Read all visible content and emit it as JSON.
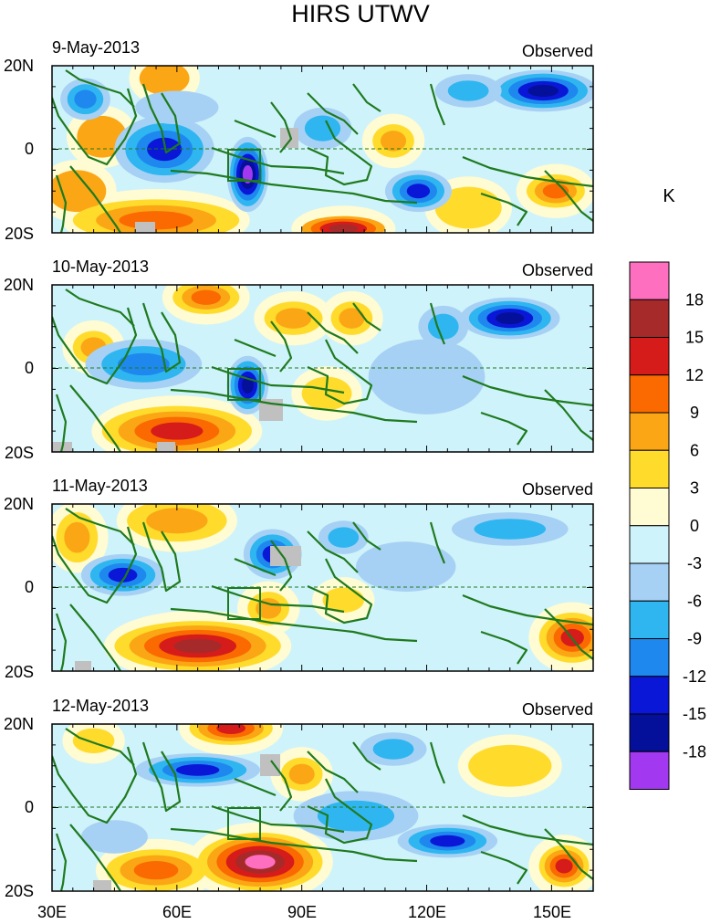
{
  "chart_data": {
    "type": "heatmap",
    "title": "HIRS UTWV",
    "unit": "K",
    "variable_label": "Observed",
    "x_ticks": [
      "30E",
      "60E",
      "90E",
      "120E",
      "150E"
    ],
    "x_tick_values": [
      30,
      60,
      90,
      120,
      150
    ],
    "x_range": [
      30,
      160
    ],
    "y_ticks": [
      "20N",
      "0",
      "20S"
    ],
    "y_tick_values": [
      20,
      0,
      -20
    ],
    "y_range": [
      -20,
      20
    ],
    "colorbar": {
      "labels": [
        "18",
        "15",
        "12",
        "9",
        "6",
        "3",
        "0",
        "-3",
        "-6",
        "-9",
        "-12",
        "-15",
        "-18"
      ],
      "levels": [
        18,
        15,
        12,
        9,
        6,
        3,
        0,
        -3,
        -6,
        -9,
        -12,
        -15,
        -18
      ],
      "colors": [
        "#ff6fc0",
        "#a62a2a",
        "#d61b1b",
        "#fa6a00",
        "#fba615",
        "#ffdb2c",
        "#fffbd2",
        "#cff3fb",
        "#a7d1f4",
        "#2fb6f0",
        "#1e88ef",
        "#0a17d7",
        "#05109a",
        "#a239f1"
      ]
    },
    "panels": [
      {
        "date": "9-May-2013",
        "label": "Observed",
        "features": [
          {
            "lon": 57,
            "lat": 17,
            "rx": 6,
            "ry": 4,
            "levels": [
              6
            ]
          },
          {
            "lon": 42,
            "lat": 3,
            "rx": 6,
            "ry": 5,
            "levels": [
              6
            ]
          },
          {
            "lon": 36,
            "lat": -10,
            "rx": 7,
            "ry": 5,
            "levels": [
              6
            ]
          },
          {
            "lon": 55,
            "lat": -17,
            "rx": 20,
            "ry": 5,
            "levels": [
              3,
              6,
              9
            ]
          },
          {
            "lon": 100,
            "lat": -19,
            "rx": 10,
            "ry": 3,
            "levels": [
              6,
              9,
              12,
              15
            ]
          },
          {
            "lon": 112,
            "lat": 2,
            "rx": 5,
            "ry": 4,
            "levels": [
              3,
              6
            ]
          },
          {
            "lon": 151,
            "lat": -10,
            "rx": 7,
            "ry": 4,
            "levels": [
              3,
              6,
              9
            ]
          },
          {
            "lon": 130,
            "lat": -14,
            "rx": 8,
            "ry": 5,
            "levels": [
              3
            ]
          },
          {
            "lon": 148,
            "lat": 14,
            "rx": 13,
            "ry": 5,
            "levels": [
              -3,
              -6,
              -9,
              -12,
              -15
            ]
          },
          {
            "lon": 77,
            "lat": -6,
            "rx": 5,
            "ry": 9,
            "levels": [
              -3,
              -6,
              -9,
              -12,
              -15,
              -18
            ]
          },
          {
            "lon": 57,
            "lat": 0,
            "rx": 12,
            "ry": 8,
            "levels": [
              -3,
              -6,
              -9,
              -12
            ]
          },
          {
            "lon": 118,
            "lat": -10,
            "rx": 8,
            "ry": 5,
            "levels": [
              -3,
              -6,
              -9,
              -12
            ]
          },
          {
            "lon": 38,
            "lat": 12,
            "rx": 6,
            "ry": 5,
            "levels": [
              -3,
              -6,
              -9
            ]
          },
          {
            "lon": 130,
            "lat": 14,
            "rx": 8,
            "ry": 4,
            "levels": [
              -3,
              -6
            ]
          },
          {
            "lon": 95,
            "lat": 5,
            "rx": 7,
            "ry": 5,
            "levels": [
              -3,
              -6
            ]
          },
          {
            "lon": 60,
            "lat": 10,
            "rx": 10,
            "ry": 4,
            "levels": [
              -3
            ]
          }
        ]
      },
      {
        "date": "10-May-2013",
        "label": "Observed",
        "features": [
          {
            "lon": 60,
            "lat": -15,
            "rx": 18,
            "ry": 6,
            "levels": [
              3,
              6,
              9,
              12
            ]
          },
          {
            "lon": 67,
            "lat": 17,
            "rx": 8,
            "ry": 4,
            "levels": [
              3,
              6,
              9
            ]
          },
          {
            "lon": 40,
            "lat": 5,
            "rx": 5,
            "ry": 4,
            "levels": [
              3,
              6
            ]
          },
          {
            "lon": 88,
            "lat": 12,
            "rx": 7,
            "ry": 4,
            "levels": [
              3,
              6
            ]
          },
          {
            "lon": 102,
            "lat": 12,
            "rx": 5,
            "ry": 4,
            "levels": [
              3,
              6
            ]
          },
          {
            "lon": 96,
            "lat": -6,
            "rx": 6,
            "ry": 4,
            "levels": [
              3
            ]
          },
          {
            "lon": 140,
            "lat": 12,
            "rx": 12,
            "ry": 5,
            "levels": [
              -3,
              -6,
              -9,
              -12,
              -15
            ]
          },
          {
            "lon": 77,
            "lat": -4,
            "rx": 5,
            "ry": 7,
            "levels": [
              -3,
              -6,
              -9,
              -12,
              -15
            ]
          },
          {
            "lon": 52,
            "lat": 1,
            "rx": 14,
            "ry": 6,
            "levels": [
              -3,
              -6,
              -9
            ]
          },
          {
            "lon": 120,
            "lat": -2,
            "rx": 14,
            "ry": 9,
            "levels": [
              -3
            ]
          },
          {
            "lon": 124,
            "lat": 10,
            "rx": 6,
            "ry": 5,
            "levels": [
              -3,
              -6
            ]
          }
        ]
      },
      {
        "date": "11-May-2013",
        "label": "Observed",
        "features": [
          {
            "lon": 65,
            "lat": -14,
            "rx": 20,
            "ry": 6,
            "levels": [
              3,
              6,
              9,
              12,
              15
            ]
          },
          {
            "lon": 155,
            "lat": -12,
            "rx": 8,
            "ry": 6,
            "levels": [
              3,
              6,
              9,
              12
            ]
          },
          {
            "lon": 36,
            "lat": 12,
            "rx": 5,
            "ry": 6,
            "levels": [
              3,
              6
            ]
          },
          {
            "lon": 60,
            "lat": 16,
            "rx": 12,
            "ry": 5,
            "levels": [
              3,
              6
            ]
          },
          {
            "lon": 82,
            "lat": -5,
            "rx": 5,
            "ry": 4,
            "levels": [
              3,
              6
            ]
          },
          {
            "lon": 100,
            "lat": -3,
            "rx": 5,
            "ry": 3,
            "levels": [
              3
            ]
          },
          {
            "lon": 83,
            "lat": 8,
            "rx": 7,
            "ry": 6,
            "levels": [
              -3,
              -6,
              -9,
              -12
            ]
          },
          {
            "lon": 47,
            "lat": 3,
            "rx": 10,
            "ry": 5,
            "levels": [
              -3,
              -6,
              -9,
              -12
            ]
          },
          {
            "lon": 100,
            "lat": 12,
            "rx": 6,
            "ry": 4,
            "levels": [
              -3,
              -6
            ]
          },
          {
            "lon": 140,
            "lat": 14,
            "rx": 14,
            "ry": 4,
            "levels": [
              -3,
              -6
            ]
          },
          {
            "lon": 115,
            "lat": 5,
            "rx": 12,
            "ry": 6,
            "levels": [
              -3
            ]
          }
        ]
      },
      {
        "date": "12-May-2013",
        "label": "Observed",
        "features": [
          {
            "lon": 80,
            "lat": -13,
            "rx": 15,
            "ry": 7,
            "levels": [
              3,
              6,
              9,
              12,
              15,
              18
            ]
          },
          {
            "lon": 73,
            "lat": 19,
            "rx": 10,
            "ry": 4,
            "levels": [
              3,
              6,
              9,
              12
            ]
          },
          {
            "lon": 153,
            "lat": -14,
            "rx": 6,
            "ry": 5,
            "levels": [
              3,
              6,
              9,
              12
            ]
          },
          {
            "lon": 55,
            "lat": -15,
            "rx": 12,
            "ry": 5,
            "levels": [
              3,
              6,
              9
            ]
          },
          {
            "lon": 140,
            "lat": 10,
            "rx": 10,
            "ry": 5,
            "levels": [
              3
            ]
          },
          {
            "lon": 90,
            "lat": 8,
            "rx": 5,
            "ry": 4,
            "levels": [
              3,
              6
            ]
          },
          {
            "lon": 40,
            "lat": 16,
            "rx": 5,
            "ry": 3,
            "levels": [
              3
            ]
          },
          {
            "lon": 65,
            "lat": 9,
            "rx": 15,
            "ry": 4,
            "levels": [
              -3,
              -6,
              -9,
              -12
            ]
          },
          {
            "lon": 125,
            "lat": -8,
            "rx": 12,
            "ry": 4,
            "levels": [
              -3,
              -6,
              -9,
              -12
            ]
          },
          {
            "lon": 103,
            "lat": -2,
            "rx": 15,
            "ry": 6,
            "levels": [
              -3,
              -6
            ]
          },
          {
            "lon": 112,
            "lat": 14,
            "rx": 8,
            "ry": 4,
            "levels": [
              -3,
              -6
            ]
          },
          {
            "lon": 45,
            "lat": -7,
            "rx": 8,
            "ry": 4,
            "levels": [
              -3
            ]
          }
        ]
      }
    ]
  }
}
